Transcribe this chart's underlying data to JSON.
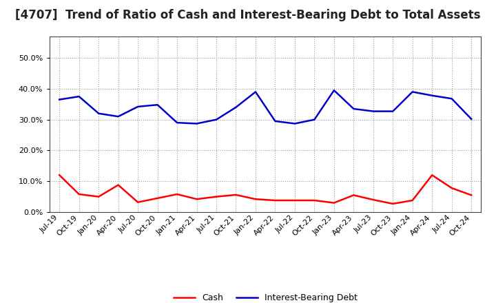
{
  "title": "[4707]  Trend of Ratio of Cash and Interest-Bearing Debt to Total Assets",
  "x_labels": [
    "Jul-19",
    "Oct-19",
    "Jan-20",
    "Apr-20",
    "Jul-20",
    "Oct-20",
    "Jan-21",
    "Apr-21",
    "Jul-21",
    "Oct-21",
    "Jan-22",
    "Apr-22",
    "Jul-22",
    "Oct-22",
    "Jan-23",
    "Apr-23",
    "Jul-23",
    "Oct-23",
    "Jan-24",
    "Apr-24",
    "Jul-24",
    "Oct-24"
  ],
  "cash": [
    0.12,
    0.058,
    0.05,
    0.088,
    0.032,
    0.045,
    0.058,
    0.042,
    0.05,
    0.056,
    0.042,
    0.038,
    0.038,
    0.038,
    0.03,
    0.055,
    0.04,
    0.027,
    0.038,
    0.12,
    0.078,
    0.055
  ],
  "debt": [
    0.365,
    0.375,
    0.32,
    0.31,
    0.342,
    0.348,
    0.29,
    0.287,
    0.3,
    0.34,
    0.39,
    0.295,
    0.287,
    0.3,
    0.395,
    0.335,
    0.327,
    0.327,
    0.39,
    0.378,
    0.368,
    0.302
  ],
  "cash_color": "#ff0000",
  "debt_color": "#0000cc",
  "ylim": [
    0.0,
    0.57
  ],
  "yticks": [
    0.0,
    0.1,
    0.2,
    0.3,
    0.4,
    0.5
  ],
  "background_color": "#ffffff",
  "plot_bg_color": "#ffffff",
  "grid_color": "#999999",
  "title_fontsize": 12,
  "tick_fontsize": 8,
  "legend_cash": "Cash",
  "legend_debt": "Interest-Bearing Debt",
  "line_width": 1.8
}
